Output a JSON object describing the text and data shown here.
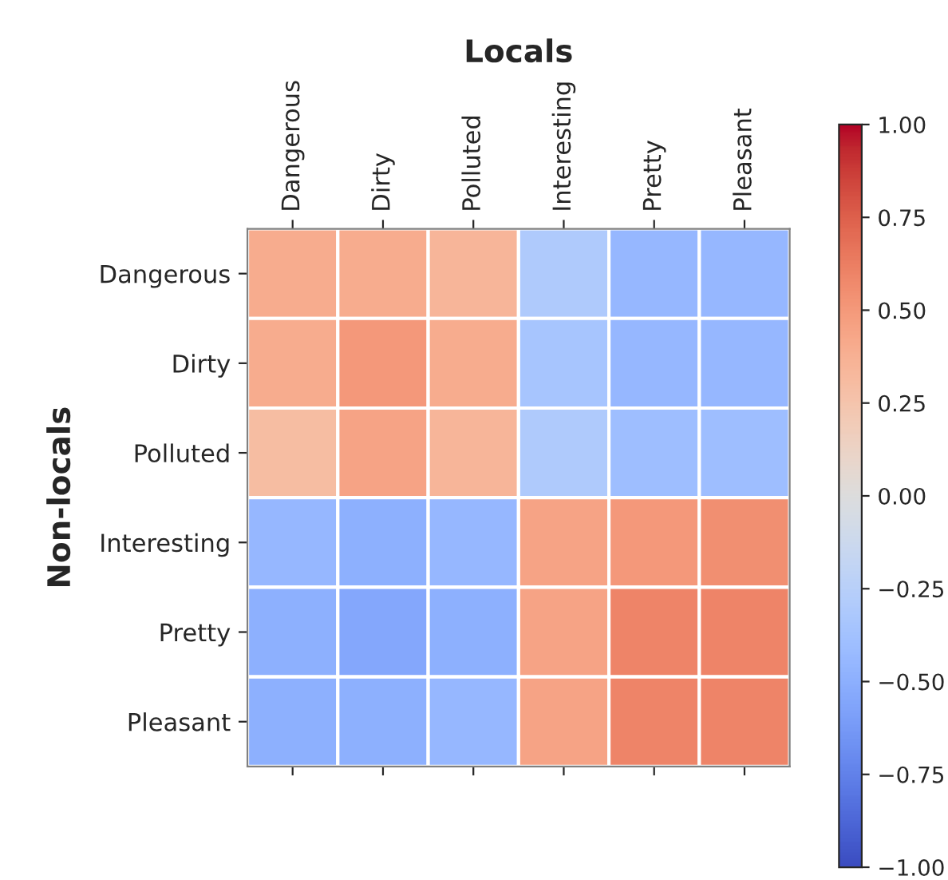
{
  "chart_data": {
    "type": "heatmap",
    "xlabel": "Locals",
    "ylabel": "Non-locals",
    "categories": [
      "Dangerous",
      "Dirty",
      "Polluted",
      "Interesting",
      "Pretty",
      "Pleasant"
    ],
    "y_categories": [
      "Dangerous",
      "Dirty",
      "Polluted",
      "Interesting",
      "Pretty",
      "Pleasant"
    ],
    "cells": [
      [
        0.4,
        0.4,
        0.35,
        -0.3,
        -0.45,
        -0.45
      ],
      [
        0.4,
        0.5,
        0.4,
        -0.35,
        -0.45,
        -0.45
      ],
      [
        0.3,
        0.45,
        0.35,
        -0.3,
        -0.4,
        -0.4
      ],
      [
        -0.45,
        -0.5,
        -0.45,
        0.45,
        0.5,
        0.55
      ],
      [
        -0.5,
        -0.55,
        -0.5,
        0.45,
        0.6,
        0.6
      ],
      [
        -0.5,
        -0.5,
        -0.45,
        0.45,
        0.6,
        0.6
      ]
    ],
    "clim": [
      -1.0,
      1.0
    ],
    "cticks": [
      {
        "value": -1,
        "label": "−1.00"
      },
      {
        "value": -0.75,
        "label": "−0.75"
      },
      {
        "value": -0.5,
        "label": "−0.50"
      },
      {
        "value": -0.25,
        "label": "−0.25"
      },
      {
        "value": 0,
        "label": "0.00"
      },
      {
        "value": 0.25,
        "label": "0.25"
      },
      {
        "value": 0.5,
        "label": "0.50"
      },
      {
        "value": 0.75,
        "label": "0.75"
      },
      {
        "value": 1,
        "label": "1.00"
      }
    ]
  }
}
